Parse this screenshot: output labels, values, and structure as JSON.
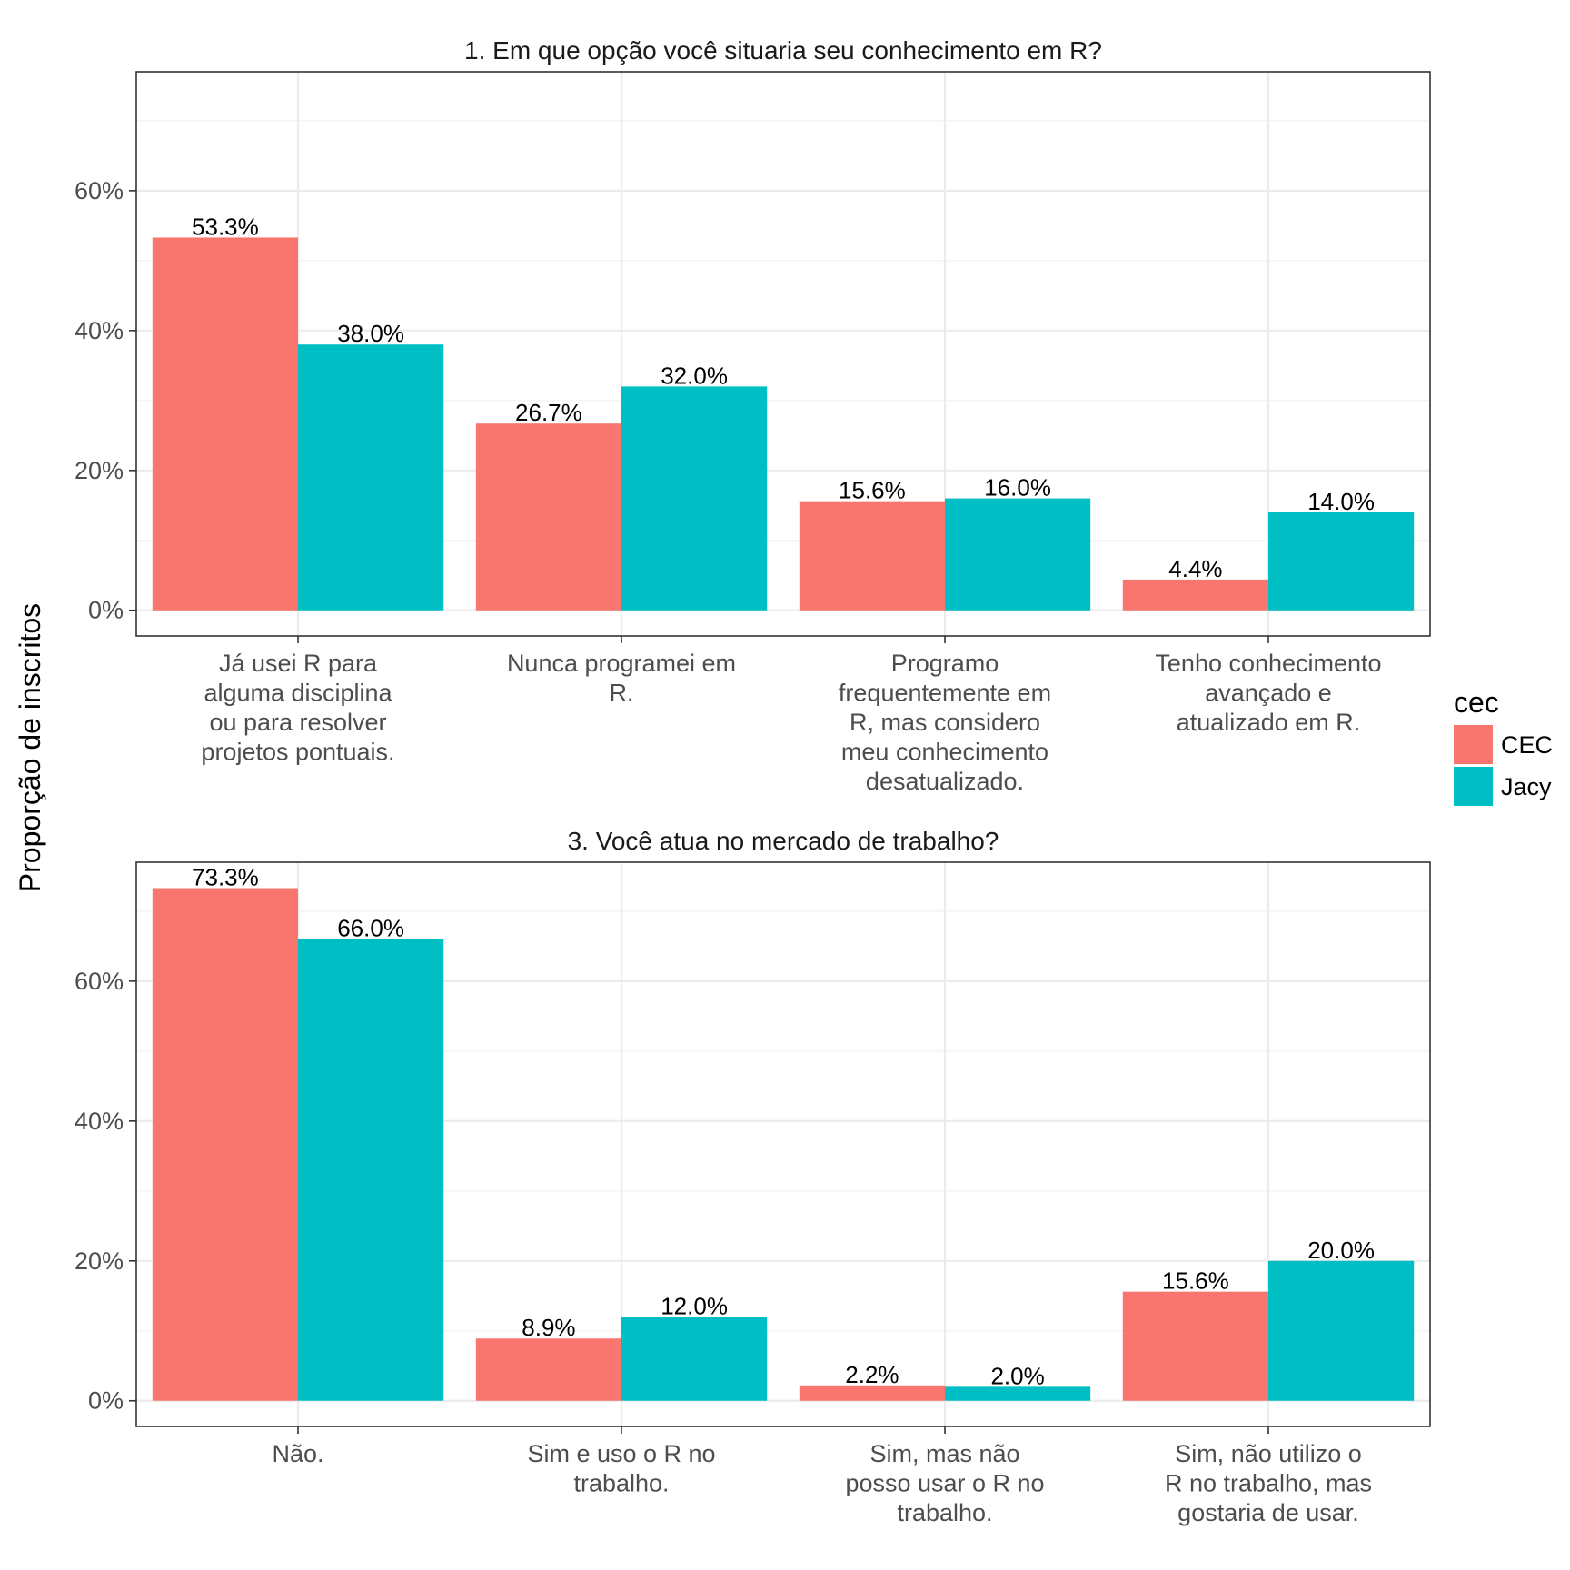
{
  "legend": {
    "title": "cec",
    "items": [
      {
        "label": "CEC",
        "color": "#F8766D"
      },
      {
        "label": "Jacy",
        "color": "#00BFC4"
      }
    ]
  },
  "ylabel": "Proporção de inscritos",
  "chart_data": [
    {
      "type": "bar",
      "title": "1. Em que opção você situaria seu conhecimento em R?",
      "categories": [
        [
          "Já usei R para",
          "alguma disciplina",
          "ou para resolver",
          "projetos pontuais."
        ],
        [
          "Nunca programei em",
          "R."
        ],
        [
          "Programo",
          "frequentemente em",
          "R, mas considero",
          "meu conhecimento",
          "desatualizado."
        ],
        [
          "Tenho conhecimento",
          "avançado e",
          "atualizado em R."
        ]
      ],
      "series": [
        {
          "name": "CEC",
          "values": [
            53.3,
            26.7,
            15.6,
            4.4
          ],
          "labels": [
            "53.3%",
            "26.7%",
            "15.6%",
            "4.4%"
          ]
        },
        {
          "name": "Jacy",
          "values": [
            38.0,
            32.0,
            16.0,
            14.0
          ],
          "labels": [
            "38.0%",
            "32.0%",
            "16.0%",
            "14.0%"
          ]
        }
      ],
      "yticks": [
        "0%",
        "20%",
        "40%",
        "60%"
      ],
      "ylim": [
        -3.67,
        77.0
      ],
      "grid": true
    },
    {
      "type": "bar",
      "title": "3. Você atua no mercado de trabalho?",
      "categories": [
        [
          "Não."
        ],
        [
          "Sim e uso o R no",
          "trabalho."
        ],
        [
          "Sim, mas não",
          "posso usar o R no",
          "trabalho."
        ],
        [
          "Sim, não utilizo o",
          "R no trabalho, mas",
          "gostaria de usar."
        ]
      ],
      "series": [
        {
          "name": "CEC",
          "values": [
            73.3,
            8.9,
            2.2,
            15.6
          ],
          "labels": [
            "73.3%",
            "8.9%",
            "2.2%",
            "15.6%"
          ]
        },
        {
          "name": "Jacy",
          "values": [
            66.0,
            12.0,
            2.0,
            20.0
          ],
          "labels": [
            "66.0%",
            "12.0%",
            "2.0%",
            "20.0%"
          ]
        }
      ],
      "yticks": [
        "0%",
        "20%",
        "40%",
        "60%"
      ],
      "ylim": [
        -3.67,
        77.0
      ],
      "grid": true
    }
  ]
}
